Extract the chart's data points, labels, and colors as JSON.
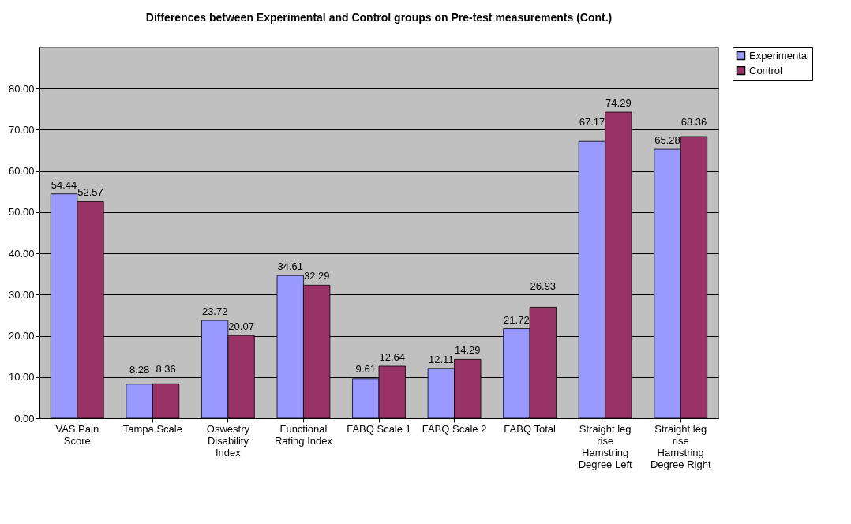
{
  "chart_data": {
    "type": "bar",
    "title": "Differences between Experimental and Control groups on Pre-test measurements (Cont.)",
    "categories": [
      "VAS Pain Score",
      "Tampa Scale",
      "Oswestry Disability Index",
      "Functional Rating Index",
      "FABQ Scale 1",
      "FABQ Scale 2",
      "FABQ Total",
      "Straight leg rise Hamstring Degree Left",
      "Straight leg rise Hamstring Degree Right"
    ],
    "series": [
      {
        "name": "Experimental",
        "color": "#9999ff",
        "values": [
          54.44,
          8.28,
          23.72,
          34.61,
          9.61,
          12.11,
          21.72,
          67.17,
          65.28
        ]
      },
      {
        "name": "Control",
        "color": "#993366",
        "values": [
          52.57,
          8.36,
          20.07,
          32.29,
          12.64,
          14.29,
          26.93,
          74.29,
          68.36
        ]
      }
    ],
    "ylim": [
      0,
      90
    ],
    "yticks": [
      {
        "value": 0,
        "label": "0.00"
      },
      {
        "value": 10,
        "label": "10.00"
      },
      {
        "value": 20,
        "label": "20.00"
      },
      {
        "value": 30,
        "label": "30.00"
      },
      {
        "value": 40,
        "label": "40.00"
      },
      {
        "value": 50,
        "label": "50.00"
      },
      {
        "value": 60,
        "label": "60.00"
      },
      {
        "value": 70,
        "label": "70.00"
      },
      {
        "value": 80,
        "label": "80.00"
      }
    ],
    "grid": "y",
    "legend": "right",
    "data_labels": true
  }
}
